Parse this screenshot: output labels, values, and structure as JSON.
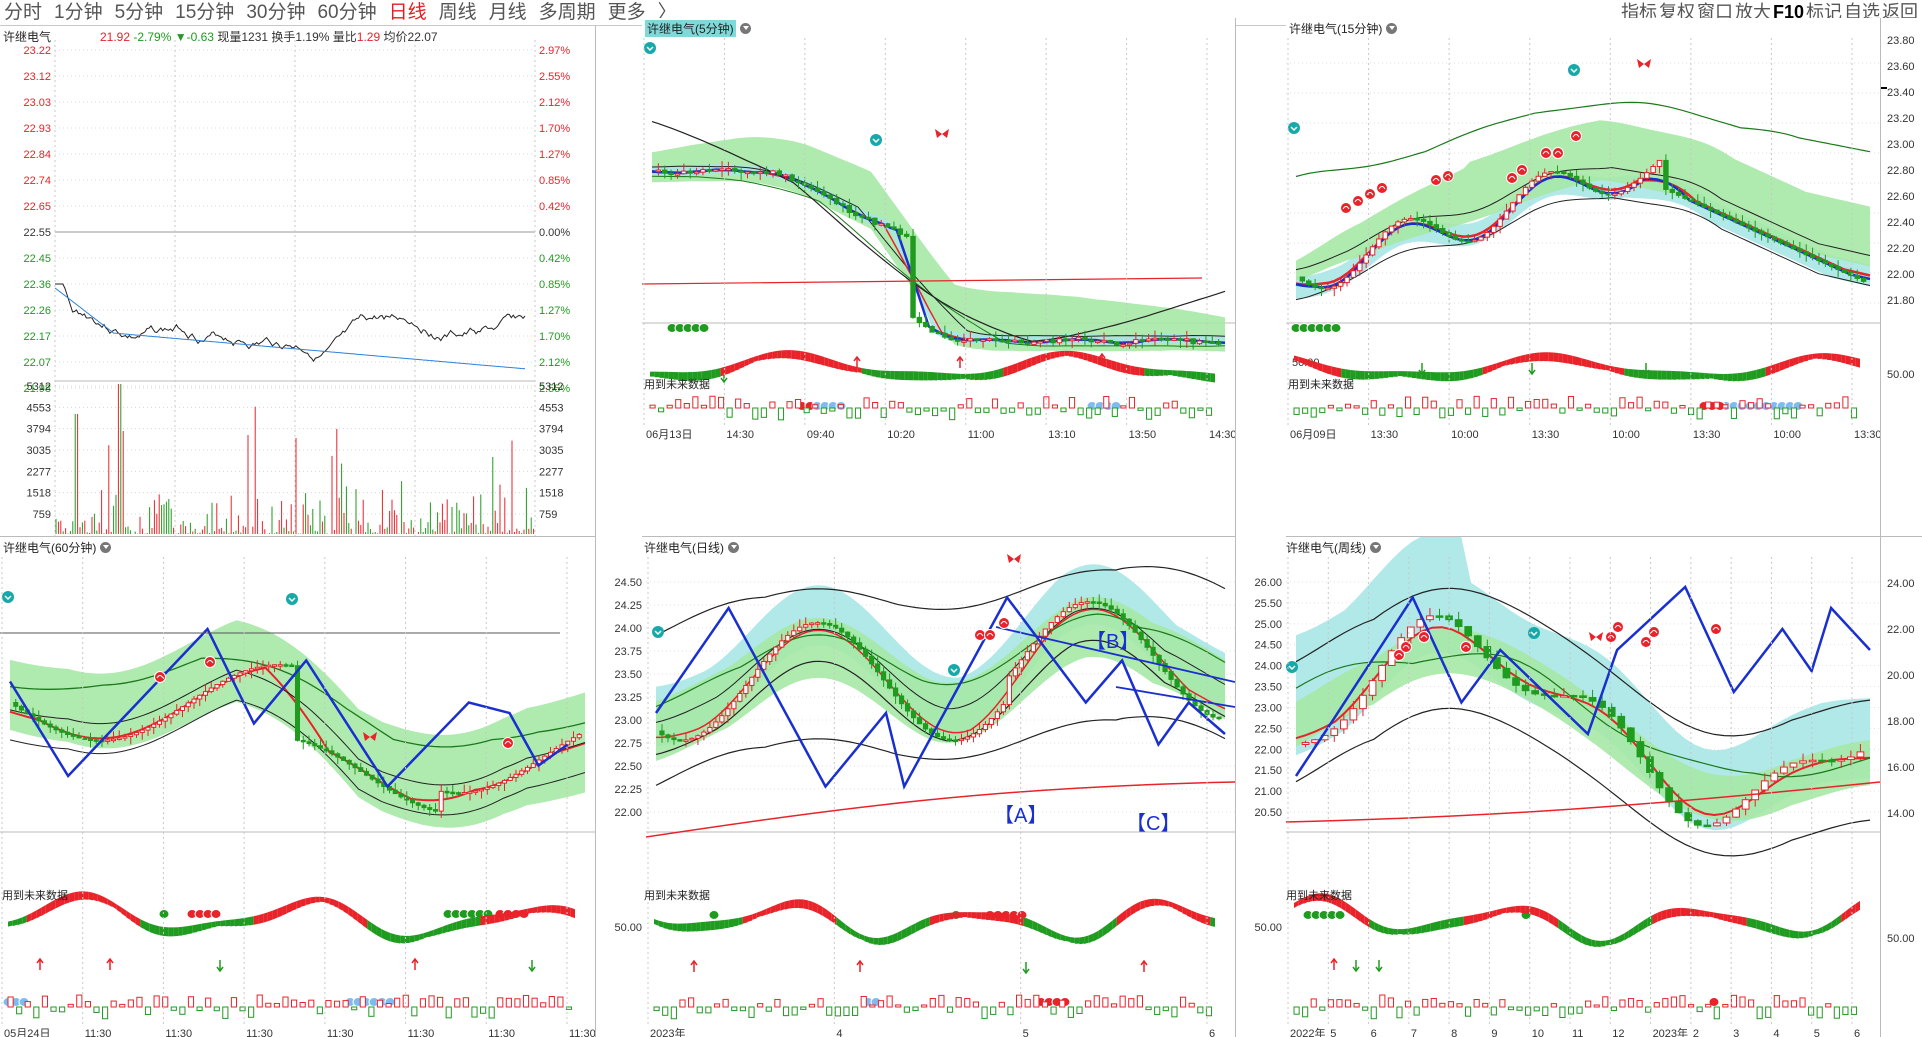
{
  "toolbar": {
    "tabs": [
      "分时",
      "1分钟",
      "5分钟",
      "15分钟",
      "30分钟",
      "60分钟",
      "日线",
      "周线",
      "月线",
      "多周期",
      "更多",
      "〉"
    ],
    "active_tab": "日线",
    "right_tools": [
      "指标",
      "复权",
      "窗口",
      "放大",
      "F10",
      "标记",
      "自选",
      "返回"
    ]
  },
  "stock": "许继电气",
  "panels": {
    "intraday": {
      "title": "许继电气",
      "quote": {
        "price": "21.92",
        "change_pct": "-2.79%",
        "change": "▼-0.63",
        "vol_label": "现量",
        "vol": "1231",
        "turnover_label": "换手",
        "turnover": "1.19%",
        "ratio_label": "量比",
        "ratio": "1.29",
        "avg_label": "均价",
        "avg": "22.07"
      },
      "price_ticks": [
        "23.22",
        "23.12",
        "23.03",
        "22.93",
        "22.84",
        "22.74",
        "22.65",
        "22.55",
        "22.45",
        "22.36",
        "22.26",
        "22.17",
        "22.07",
        "21.98"
      ],
      "pct_ticks": [
        "2.97%",
        "2.55%",
        "2.12%",
        "1.70%",
        "1.27%",
        "0.85%",
        "0.42%",
        "0.00%",
        "0.42%",
        "0.85%",
        "1.27%",
        "1.70%",
        "2.12%",
        "2.55%"
      ],
      "vol_ticks": [
        "5312",
        "4553",
        "3794",
        "3035",
        "2277",
        "1518",
        "759"
      ]
    },
    "m5": {
      "title": "许继电气(5分钟)",
      "note": "用到未来数据",
      "x_labels": [
        "06月13日",
        "14:30",
        "09:40",
        "10:20",
        "11:00",
        "13:10",
        "13:50",
        "14:30"
      ]
    },
    "m15": {
      "title": "许继电气(15分钟)",
      "note": "用到未来数据",
      "y_ticks": [
        "23.60",
        "23.40",
        "23.20",
        "23.00",
        "22.80",
        "22.60",
        "22.40",
        "22.20",
        "22.00"
      ],
      "osc_tick": "50.00",
      "x_labels": [
        "06月09日",
        "13:30",
        "10:00",
        "13:30",
        "10:00",
        "13:30",
        "10:00",
        "13:30"
      ]
    },
    "right_axis": {
      "ticks": [
        "23.80",
        "23.60",
        "23.40",
        "23.20",
        "23.00",
        "22.80",
        "22.60",
        "22.40",
        "22.20",
        "22.00",
        "21.80"
      ],
      "osc_tick": "50.00"
    },
    "m60": {
      "title": "许继电气(60分钟)",
      "note": "用到未来数据",
      "x_labels": [
        "05月24日",
        "11:30",
        "11:30",
        "11:30",
        "11:30",
        "11:30",
        "11:30",
        "11:30"
      ]
    },
    "daily": {
      "title": "许继电气(日线)",
      "note": "用到未来数据",
      "y_ticks": [
        "24.50",
        "24.25",
        "24.00",
        "23.75",
        "23.50",
        "23.25",
        "23.00",
        "22.75",
        "22.50",
        "22.25",
        "22.00"
      ],
      "osc_tick": "50.00",
      "x_labels": [
        "2023年",
        "4",
        "5",
        "6"
      ],
      "wave_labels": [
        "【B】",
        "【A】",
        "【C】"
      ]
    },
    "weekly": {
      "title": "许继电气(周线)",
      "note": "用到未来数据",
      "y_ticks": [
        "26.00",
        "25.50",
        "25.00",
        "24.50",
        "24.00",
        "23.50",
        "23.00",
        "22.50",
        "22.00",
        "21.50",
        "21.00",
        "20.50"
      ],
      "osc_tick": "50.00",
      "x_labels": [
        "2022年",
        "5",
        "6",
        "7",
        "8",
        "9",
        "10",
        "11",
        "12",
        "2023年",
        "2",
        "3",
        "4",
        "5",
        "6"
      ]
    },
    "weekly_axis": {
      "ticks": [
        "24.00",
        "22.00",
        "20.00",
        "18.00",
        "16.00",
        "14.00"
      ],
      "osc_tick": "50.00"
    }
  },
  "colors": {
    "up": "#e8232a",
    "down": "#1f9b1f",
    "zig": "#1a2fd0",
    "band_green": "#9be49b",
    "band_cyan": "#9ee3e3"
  }
}
